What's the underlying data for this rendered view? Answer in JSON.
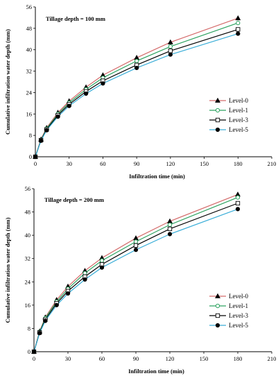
{
  "chart_data": [
    {
      "type": "line",
      "annotation": "Tillage depth = 100 mm",
      "xlabel": "Infiltration time (min)",
      "ylabel": "Cumulative infiltration water depth (mm)",
      "xlim": [
        0,
        210
      ],
      "ylim": [
        0,
        56
      ],
      "xticks": [
        0,
        30,
        60,
        90,
        120,
        150,
        180,
        210
      ],
      "yticks": [
        0,
        8,
        16,
        24,
        32,
        40,
        48,
        56
      ],
      "grid": false,
      "legend_position": "right",
      "x": [
        0,
        5,
        10,
        20,
        30,
        45,
        60,
        90,
        120,
        180
      ],
      "series": [
        {
          "name": "Level-0",
          "color": "#d46a6a",
          "marker": "triangle",
          "values": [
            0,
            6.5,
            10.8,
            16.5,
            20.8,
            26.0,
            30.5,
            37.0,
            42.8,
            51.8
          ]
        },
        {
          "name": "Level-1",
          "color": "#2ca25f",
          "marker": "circle-open",
          "values": [
            0,
            6.3,
            10.5,
            16.0,
            20.2,
            25.2,
            29.5,
            35.8,
            41.2,
            50.0
          ]
        },
        {
          "name": "Level-3",
          "color": "#000000",
          "marker": "square-open",
          "values": [
            0,
            6.2,
            10.2,
            15.5,
            19.6,
            24.4,
            28.4,
            34.3,
            39.6,
            47.6
          ]
        },
        {
          "name": "Level-5",
          "color": "#3aaed8",
          "marker": "circle-filled",
          "values": [
            0,
            6.0,
            9.9,
            15.0,
            19.0,
            23.6,
            27.4,
            33.2,
            38.2,
            46.0
          ]
        }
      ]
    },
    {
      "type": "line",
      "annotation": "Tillage depth = 200 mm",
      "xlabel": "Infiltration time (min)",
      "ylabel": "Cumulative infiltration water depth (mm)",
      "xlim": [
        0,
        210
      ],
      "ylim": [
        0,
        56
      ],
      "xticks": [
        0,
        30,
        60,
        90,
        120,
        150,
        180,
        210
      ],
      "yticks": [
        0,
        8,
        16,
        24,
        32,
        40,
        48,
        56
      ],
      "grid": false,
      "legend_position": "right",
      "x": [
        0,
        5,
        10,
        20,
        30,
        45,
        60,
        90,
        120,
        180
      ],
      "series": [
        {
          "name": "Level-0",
          "color": "#d46a6a",
          "marker": "triangle",
          "values": [
            0,
            7.0,
            11.8,
            17.8,
            22.4,
            27.8,
            32.2,
            39.0,
            44.8,
            54.0
          ]
        },
        {
          "name": "Level-1",
          "color": "#2ca25f",
          "marker": "circle-open",
          "values": [
            0,
            6.8,
            11.5,
            17.2,
            21.6,
            27.0,
            31.3,
            37.8,
            43.6,
            53.0
          ]
        },
        {
          "name": "Level-3",
          "color": "#000000",
          "marker": "square-open",
          "values": [
            0,
            6.6,
            11.0,
            16.6,
            20.8,
            25.8,
            30.0,
            36.5,
            42.2,
            51.0
          ]
        },
        {
          "name": "Level-5",
          "color": "#3aaed8",
          "marker": "circle-filled",
          "values": [
            0,
            6.4,
            10.6,
            16.0,
            20.0,
            24.8,
            28.9,
            35.0,
            40.4,
            49.0
          ]
        }
      ]
    }
  ]
}
